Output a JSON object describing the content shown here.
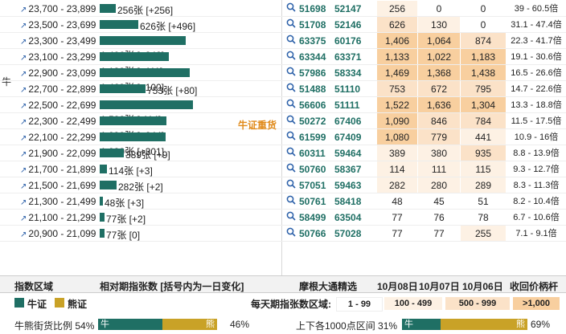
{
  "bull_label": "牛",
  "overlay_label": "牛证重货",
  "colors": {
    "bull": "#1f6f64",
    "bear": "#c9a227",
    "tier1": "#ffffff",
    "tier2": "#fdf1e4",
    "tier3": "#fbe2c8",
    "tier4": "#f8cf9f"
  },
  "rows": [
    {
      "range": "23,700 - 23,899",
      "label": "256张 [+256]",
      "a": "51698",
      "b": "52147",
      "d1": "256",
      "d2": "0",
      "d3": "0",
      "price": "39 - 60.5倍",
      "value": 256
    },
    {
      "range": "23,500 - 23,699",
      "label": "626张 [+496]",
      "a": "51708",
      "b": "52146",
      "d1": "626",
      "d2": "130",
      "d3": "0",
      "price": "31.1 - 47.4倍",
      "value": 626
    },
    {
      "range": "23,300 - 23,499",
      "label": "1,406张 [+342]",
      "a": "63375",
      "b": "60176",
      "d1": "1,406",
      "d2": "1,064",
      "d3": "874",
      "price": "22.3 - 41.7倍",
      "value": 1406
    },
    {
      "range": "23,100 - 23,299",
      "label": "1,133张 [+111]",
      "a": "63344",
      "b": "63371",
      "d1": "1,133",
      "d2": "1,022",
      "d3": "1,183",
      "price": "19.1 - 30.6倍",
      "value": 1133
    },
    {
      "range": "22,900 - 23,099",
      "label": "1,469张 [+100]",
      "a": "57986",
      "b": "58334",
      "d1": "1,469",
      "d2": "1,368",
      "d3": "1,438",
      "price": "16.5 - 26.6倍",
      "value": 1469
    },
    {
      "range": "22,700 - 22,899",
      "label": "753张 [+80]",
      "a": "51488",
      "b": "51110",
      "d1": "753",
      "d2": "672",
      "d3": "795",
      "price": "14.7 - 22.6倍",
      "value": 753
    },
    {
      "range": "22,500 - 22,699",
      "label": "1,522张 [-114]",
      "a": "56606",
      "b": "51111",
      "d1": "1,522",
      "d2": "1,636",
      "d3": "1,304",
      "price": "13.3 - 18.8倍",
      "value": 1522
    },
    {
      "range": "22,300 - 22,499",
      "label": "1,090张 [+244]",
      "a": "50272",
      "b": "67406",
      "d1": "1,090",
      "d2": "846",
      "d3": "784",
      "price": "11.5 - 17.5倍",
      "value": 1090
    },
    {
      "range": "22,100 - 22,299",
      "label": "1,080张 [+301]",
      "a": "61599",
      "b": "67409",
      "d1": "1,080",
      "d2": "779",
      "d3": "441",
      "price": "10.9 - 16倍",
      "value": 1080
    },
    {
      "range": "21,900 - 22,099",
      "label": "389张 [+9]",
      "a": "60311",
      "b": "59464",
      "d1": "389",
      "d2": "380",
      "d3": "935",
      "price": "8.8 - 13.9倍",
      "value": 389
    },
    {
      "range": "21,700 - 21,899",
      "label": "114张 [+3]",
      "a": "50760",
      "b": "58367",
      "d1": "114",
      "d2": "111",
      "d3": "115",
      "price": "9.3 - 12.7倍",
      "value": 114
    },
    {
      "range": "21,500 - 21,699",
      "label": "282张 [+2]",
      "a": "57051",
      "b": "59463",
      "d1": "282",
      "d2": "280",
      "d3": "289",
      "price": "8.3 - 11.3倍",
      "value": 282
    },
    {
      "range": "21,300 - 21,499",
      "label": "48张 [+3]",
      "a": "50761",
      "b": "58418",
      "d1": "48",
      "d2": "45",
      "d3": "51",
      "price": "8.2 - 10.4倍",
      "value": 48
    },
    {
      "range": "21,100 - 21,299",
      "label": "77张 [+2]",
      "a": "58499",
      "b": "63504",
      "d1": "77",
      "d2": "76",
      "d3": "78",
      "price": "6.7 - 10.6倍",
      "value": 77
    },
    {
      "range": "20,900 - 21,099",
      "label": "77张 [0]",
      "a": "50766",
      "b": "57028",
      "d1": "77",
      "d2": "77",
      "d3": "255",
      "price": "7.1 - 9.1倍",
      "value": 77
    }
  ],
  "header": {
    "col_range": "指数区域",
    "col_rel": "相对期指张数 [括号内为一日变化]",
    "col_picks": "摩根大通精选",
    "col_d1": "10月08日",
    "col_d2": "10月07日",
    "col_d3": "10月06日",
    "col_price": "收回价柄杆"
  },
  "legend": {
    "bull": "牛证",
    "bear": "熊证",
    "bands_title": "每天期指张数区域:",
    "bands": [
      "1 - 99",
      "100 - 499",
      "500 - 999",
      ">1,000"
    ]
  },
  "ratio_left": {
    "label": "牛熊街货比例",
    "bull_pct": "54%",
    "bull_text": "牛",
    "bear_text": "熊",
    "bear_pct": "46%",
    "bull_value": 54
  },
  "ratio_right": {
    "label": "上下各1000点区间",
    "bull_pct": "31%",
    "bull_text": "牛",
    "bear_text": "熊",
    "bear_pct": "69%",
    "bull_value": 31
  }
}
